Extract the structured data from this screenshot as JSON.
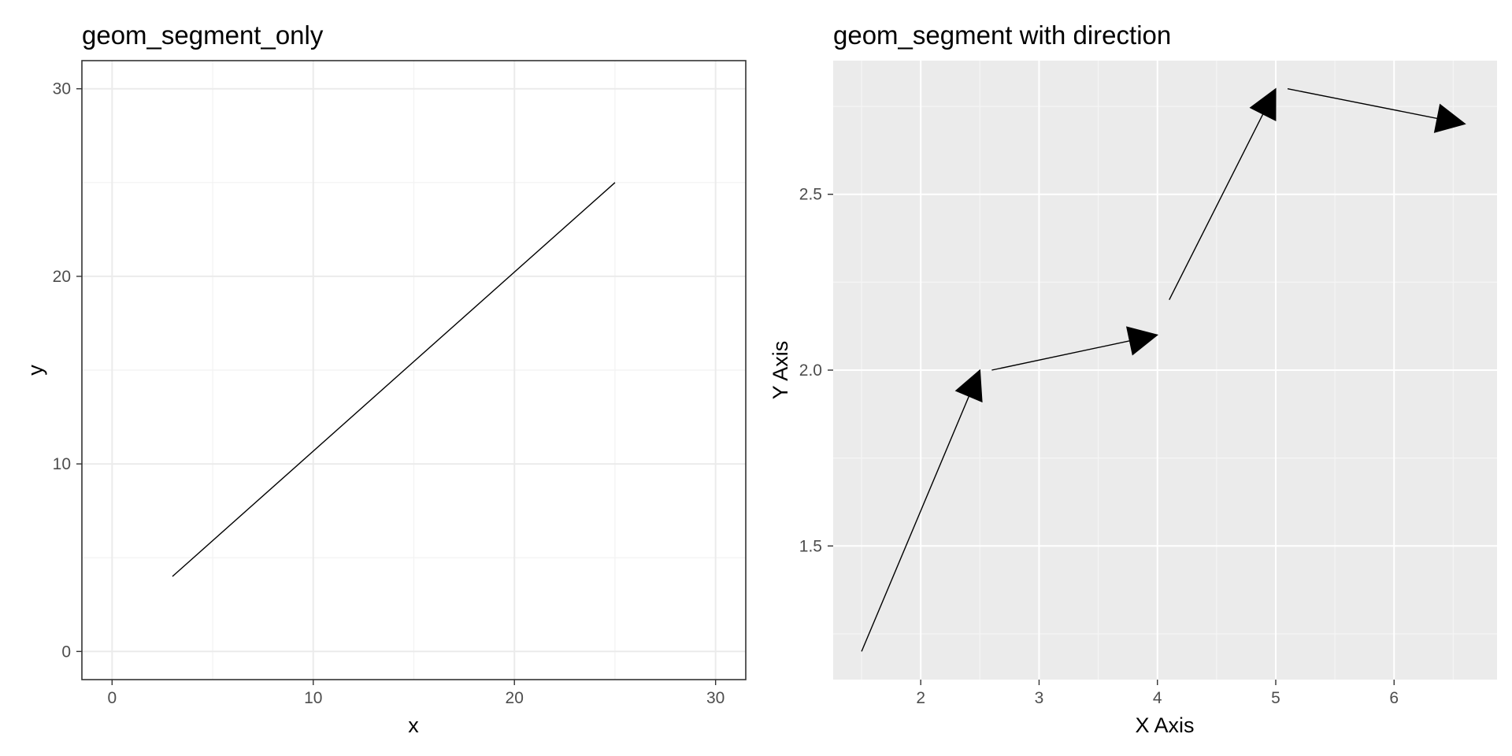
{
  "chart_data": [
    {
      "type": "line",
      "title": "geom_segment_only",
      "xlabel": "x",
      "ylabel": "y",
      "xlim": [
        -1.5,
        31.5
      ],
      "ylim": [
        -1.5,
        31.5
      ],
      "x_ticks": [
        0,
        10,
        20,
        30
      ],
      "y_ticks": [
        0,
        10,
        20,
        30
      ],
      "x_tick_labels": [
        "0",
        "10",
        "20",
        "30"
      ],
      "y_tick_labels": [
        "0",
        "10",
        "20",
        "30"
      ],
      "theme": "bw",
      "grid": true,
      "segments": [
        {
          "x": 3,
          "y": 4,
          "xend": 25,
          "yend": 25,
          "arrow": false
        }
      ]
    },
    {
      "type": "line",
      "title": "geom_segment with direction",
      "xlabel": "X Axis",
      "ylabel": "Y Axis",
      "xlim": [
        1.26,
        6.87
      ],
      "ylim": [
        1.12,
        2.88
      ],
      "x_ticks": [
        2,
        3,
        4,
        5,
        6
      ],
      "y_ticks": [
        1.5,
        2.0,
        2.5
      ],
      "x_tick_labels": [
        "2",
        "3",
        "4",
        "5",
        "6"
      ],
      "y_tick_labels": [
        "1.5",
        "2.0",
        "2.5"
      ],
      "theme": "grey",
      "grid": true,
      "segments": [
        {
          "x": 1.5,
          "y": 1.2,
          "xend": 2.5,
          "yend": 2.0,
          "arrow": true
        },
        {
          "x": 2.6,
          "y": 2.0,
          "xend": 4.0,
          "yend": 2.1,
          "arrow": true
        },
        {
          "x": 4.1,
          "y": 2.2,
          "xend": 5.0,
          "yend": 2.8,
          "arrow": true
        },
        {
          "x": 5.1,
          "y": 2.8,
          "xend": 6.6,
          "yend": 2.7,
          "arrow": true
        }
      ]
    }
  ]
}
